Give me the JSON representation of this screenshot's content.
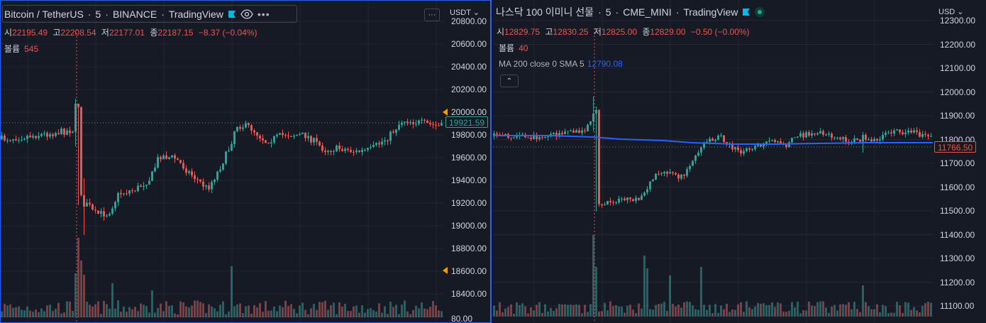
{
  "left": {
    "header": {
      "symbol": "Bitcoin / TetherUS",
      "interval": "5",
      "exchange": "BINANCE",
      "source": "TradingView",
      "sep": "·"
    },
    "ohlc": [
      {
        "label": "시",
        "value": "22195.49"
      },
      {
        "label": "고",
        "value": "22208.54"
      },
      {
        "label": "저",
        "value": "22177.01"
      },
      {
        "label": "종",
        "value": "22187.15"
      }
    ],
    "change": "−8.37 (−0.04%)",
    "volume": {
      "label": "볼륨",
      "value": "545"
    },
    "more_label": "···",
    "currency": "USDT",
    "ticks": [
      "20800.00",
      "20600.00",
      "20400.00",
      "20200.00",
      "20000.00",
      "19800.00",
      "19600.00",
      "19400.00",
      "19200.00",
      "19000.00",
      "18800.00",
      "18600.00",
      "18400.00",
      "80.00"
    ],
    "last_price": "19921.59"
  },
  "right": {
    "header": {
      "symbol": "나스닥 100 이미니 선물",
      "interval": "5",
      "exchange": "CME_MINI",
      "source": "TradingView",
      "sep": "·"
    },
    "ohlc": [
      {
        "label": "시",
        "value": "12829.75"
      },
      {
        "label": "고",
        "value": "12830.25"
      },
      {
        "label": "저",
        "value": "12825.00"
      },
      {
        "label": "종",
        "value": "12829.00"
      }
    ],
    "change": "−0.50 (−0.00%)",
    "volume": {
      "label": "볼륨",
      "value": "40"
    },
    "ma": {
      "label": "MA 200 close 0 SMA 5",
      "value": "12790.08"
    },
    "collapse_label": "⌃",
    "currency": "USD",
    "ticks": [
      "12300.00",
      "12200.00",
      "12100.00",
      "12000.00",
      "11900.00",
      "11800.00",
      "11700.00",
      "11600.00",
      "11500.00",
      "11400.00",
      "11300.00",
      "11200.00",
      "11100.00"
    ],
    "last_price": "11766.50"
  },
  "colors": {
    "up": "#26a69a",
    "down": "#ef5350",
    "ma": "#2962ff",
    "bg": "#161a25",
    "grid": "#242732",
    "crosshair": "#ef5350",
    "alert": "#ff9800"
  },
  "icons": {
    "flag": "flag-icon",
    "eye": "eye-icon",
    "more": "more-icon",
    "live": "live-status-icon",
    "collapse": "chevron-up-icon"
  }
}
